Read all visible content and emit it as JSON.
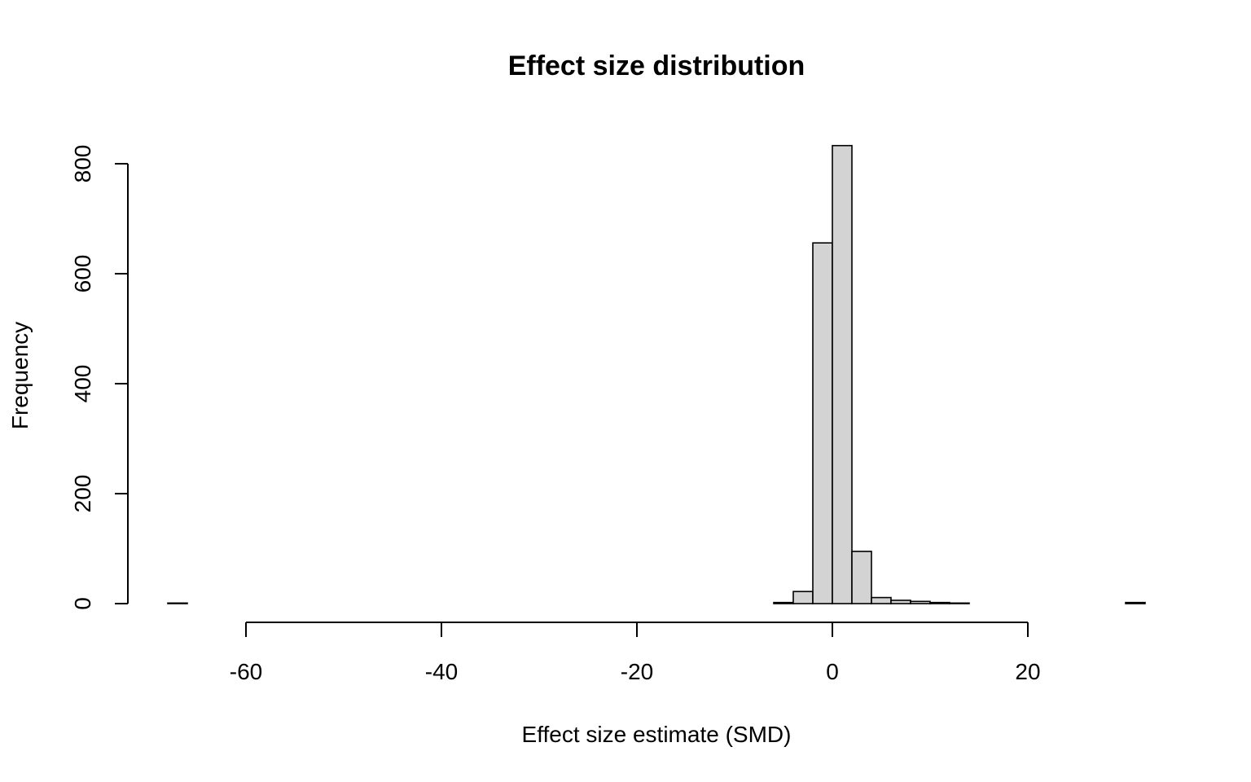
{
  "chart_data": {
    "type": "bar",
    "title": "Effect size distribution",
    "xlabel": "Effect size estimate (SMD)",
    "ylabel": "Frequency",
    "xlim": [
      -68,
      32
    ],
    "ylim": [
      0,
      840
    ],
    "x_ticks": [
      -60,
      -40,
      -20,
      0,
      20
    ],
    "y_ticks": [
      0,
      200,
      400,
      600,
      800
    ],
    "bin_width": 2,
    "bins": [
      {
        "start": -68,
        "end": -66,
        "count": 1
      },
      {
        "start": -66,
        "end": -64,
        "count": 0
      },
      {
        "start": -64,
        "end": -62,
        "count": 0
      },
      {
        "start": -62,
        "end": -60,
        "count": 0
      },
      {
        "start": -60,
        "end": -58,
        "count": 0
      },
      {
        "start": -58,
        "end": -56,
        "count": 0
      },
      {
        "start": -56,
        "end": -54,
        "count": 0
      },
      {
        "start": -54,
        "end": -52,
        "count": 0
      },
      {
        "start": -52,
        "end": -50,
        "count": 0
      },
      {
        "start": -50,
        "end": -48,
        "count": 0
      },
      {
        "start": -48,
        "end": -46,
        "count": 0
      },
      {
        "start": -46,
        "end": -44,
        "count": 0
      },
      {
        "start": -44,
        "end": -42,
        "count": 0
      },
      {
        "start": -42,
        "end": -40,
        "count": 0
      },
      {
        "start": -40,
        "end": -38,
        "count": 0
      },
      {
        "start": -38,
        "end": -36,
        "count": 0
      },
      {
        "start": -36,
        "end": -34,
        "count": 0
      },
      {
        "start": -34,
        "end": -32,
        "count": 0
      },
      {
        "start": -32,
        "end": -30,
        "count": 0
      },
      {
        "start": -30,
        "end": -28,
        "count": 0
      },
      {
        "start": -28,
        "end": -26,
        "count": 0
      },
      {
        "start": -26,
        "end": -24,
        "count": 0
      },
      {
        "start": -24,
        "end": -22,
        "count": 0
      },
      {
        "start": -22,
        "end": -20,
        "count": 0
      },
      {
        "start": -20,
        "end": -18,
        "count": 0
      },
      {
        "start": -18,
        "end": -16,
        "count": 0
      },
      {
        "start": -16,
        "end": -14,
        "count": 0
      },
      {
        "start": -14,
        "end": -12,
        "count": 0
      },
      {
        "start": -12,
        "end": -10,
        "count": 0
      },
      {
        "start": -10,
        "end": -8,
        "count": 0
      },
      {
        "start": -8,
        "end": -6,
        "count": 0
      },
      {
        "start": -6,
        "end": -4,
        "count": 2
      },
      {
        "start": -4,
        "end": -2,
        "count": 22
      },
      {
        "start": -2,
        "end": 0,
        "count": 656
      },
      {
        "start": 0,
        "end": 2,
        "count": 833
      },
      {
        "start": 2,
        "end": 4,
        "count": 95
      },
      {
        "start": 4,
        "end": 6,
        "count": 11
      },
      {
        "start": 6,
        "end": 8,
        "count": 6
      },
      {
        "start": 8,
        "end": 10,
        "count": 4
      },
      {
        "start": 10,
        "end": 12,
        "count": 2
      },
      {
        "start": 12,
        "end": 14,
        "count": 1
      },
      {
        "start": 14,
        "end": 16,
        "count": 0
      },
      {
        "start": 16,
        "end": 18,
        "count": 0
      },
      {
        "start": 18,
        "end": 20,
        "count": 0
      },
      {
        "start": 20,
        "end": 22,
        "count": 0
      },
      {
        "start": 22,
        "end": 24,
        "count": 0
      },
      {
        "start": 24,
        "end": 26,
        "count": 0
      },
      {
        "start": 26,
        "end": 28,
        "count": 0
      },
      {
        "start": 28,
        "end": 30,
        "count": 0
      },
      {
        "start": 30,
        "end": 32,
        "count": 2
      }
    ],
    "bar_color": "#d3d3d3",
    "grid": false,
    "legend": "none"
  }
}
